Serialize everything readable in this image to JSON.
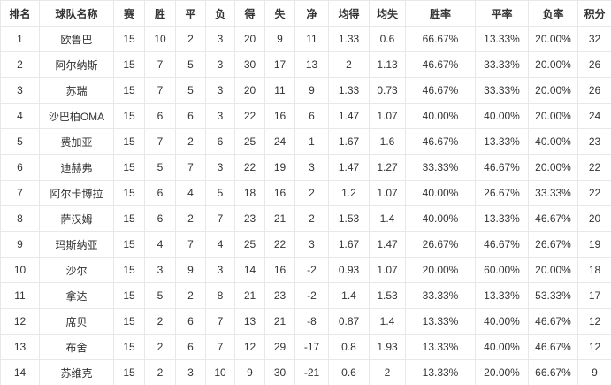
{
  "standings": {
    "columns": [
      "排名",
      "球队名称",
      "赛",
      "胜",
      "平",
      "负",
      "得",
      "失",
      "净",
      "均得",
      "均失",
      "胜率",
      "平率",
      "负率",
      "积分"
    ],
    "rows": [
      [
        "1",
        "欧鲁巴",
        "15",
        "10",
        "2",
        "3",
        "20",
        "9",
        "11",
        "1.33",
        "0.6",
        "66.67%",
        "13.33%",
        "20.00%",
        "32"
      ],
      [
        "2",
        "阿尔纳斯",
        "15",
        "7",
        "5",
        "3",
        "30",
        "17",
        "13",
        "2",
        "1.13",
        "46.67%",
        "33.33%",
        "20.00%",
        "26"
      ],
      [
        "3",
        "苏瑞",
        "15",
        "7",
        "5",
        "3",
        "20",
        "11",
        "9",
        "1.33",
        "0.73",
        "46.67%",
        "33.33%",
        "20.00%",
        "26"
      ],
      [
        "4",
        "沙巴柏OMA",
        "15",
        "6",
        "6",
        "3",
        "22",
        "16",
        "6",
        "1.47",
        "1.07",
        "40.00%",
        "40.00%",
        "20.00%",
        "24"
      ],
      [
        "5",
        "费加亚",
        "15",
        "7",
        "2",
        "6",
        "25",
        "24",
        "1",
        "1.67",
        "1.6",
        "46.67%",
        "13.33%",
        "40.00%",
        "23"
      ],
      [
        "6",
        "迪赫弗",
        "15",
        "5",
        "7",
        "3",
        "22",
        "19",
        "3",
        "1.47",
        "1.27",
        "33.33%",
        "46.67%",
        "20.00%",
        "22"
      ],
      [
        "7",
        "阿尔卡博拉",
        "15",
        "6",
        "4",
        "5",
        "18",
        "16",
        "2",
        "1.2",
        "1.07",
        "40.00%",
        "26.67%",
        "33.33%",
        "22"
      ],
      [
        "8",
        "萨汉姆",
        "15",
        "6",
        "2",
        "7",
        "23",
        "21",
        "2",
        "1.53",
        "1.4",
        "40.00%",
        "13.33%",
        "46.67%",
        "20"
      ],
      [
        "9",
        "玛斯纳亚",
        "15",
        "4",
        "7",
        "4",
        "25",
        "22",
        "3",
        "1.67",
        "1.47",
        "26.67%",
        "46.67%",
        "26.67%",
        "19"
      ],
      [
        "10",
        "沙尔",
        "15",
        "3",
        "9",
        "3",
        "14",
        "16",
        "-2",
        "0.93",
        "1.07",
        "20.00%",
        "60.00%",
        "20.00%",
        "18"
      ],
      [
        "11",
        "拿达",
        "15",
        "5",
        "2",
        "8",
        "21",
        "23",
        "-2",
        "1.4",
        "1.53",
        "33.33%",
        "13.33%",
        "53.33%",
        "17"
      ],
      [
        "12",
        "席贝",
        "15",
        "2",
        "6",
        "7",
        "13",
        "21",
        "-8",
        "0.87",
        "1.4",
        "13.33%",
        "40.00%",
        "46.67%",
        "12"
      ],
      [
        "13",
        "布舍",
        "15",
        "2",
        "6",
        "7",
        "12",
        "29",
        "-17",
        "0.8",
        "1.93",
        "13.33%",
        "40.00%",
        "46.67%",
        "12"
      ],
      [
        "14",
        "苏维克",
        "15",
        "2",
        "3",
        "10",
        "9",
        "30",
        "-21",
        "0.6",
        "2",
        "13.33%",
        "20.00%",
        "66.67%",
        "9"
      ]
    ]
  },
  "colors": {
    "border": "#e8e8e8",
    "header_text": "#333333",
    "cell_text": "#333333",
    "row_background": "#ffffff"
  }
}
